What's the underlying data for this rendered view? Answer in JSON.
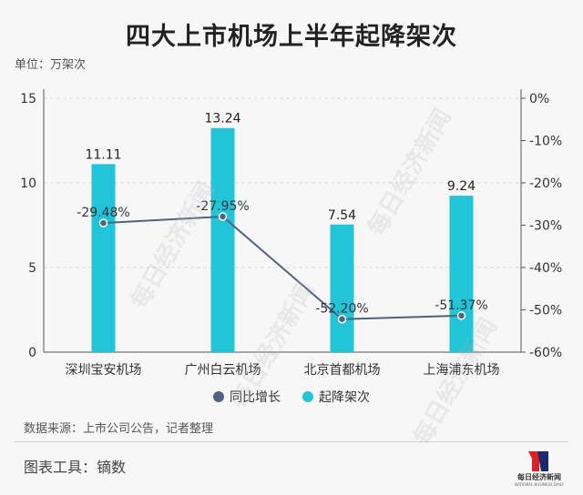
{
  "header": {
    "title": "四大上市机场上半年起降架次",
    "unit": "单位：万架次"
  },
  "footer": {
    "source": "数据来源：上市公司公告，记者整理",
    "tool": "图表工具：镝数",
    "logo_text": "每日经济新闻",
    "logo_subtext": "NATIONAL BUSINESS DAILY"
  },
  "watermark_text": "每日经济新闻",
  "colors": {
    "bar": "#22c4d8",
    "line": "#4f6381",
    "axis": "#333333",
    "logo_red": "#e02020",
    "logo_blue": "#1a2a6c"
  },
  "chart_data": {
    "type": "bar",
    "categories": [
      "深圳宝安机场",
      "广州白云机场",
      "北京首都机场",
      "上海浦东机场"
    ],
    "series": [
      {
        "name": "起降架次",
        "type": "bar",
        "axis": "left",
        "values": [
          11.11,
          13.24,
          7.54,
          9.24
        ],
        "labels": [
          "11.11",
          "13.24",
          "7.54",
          "9.24"
        ]
      },
      {
        "name": "同比增长",
        "type": "line",
        "axis": "right",
        "values": [
          -29.48,
          -27.95,
          -52.2,
          -51.37
        ],
        "labels": [
          "-29.48%",
          "-27.95%",
          "-52.20%",
          "-51.37%"
        ]
      }
    ],
    "left_axis": {
      "ylim": [
        0,
        15
      ],
      "ticks": [
        "0",
        "5",
        "10",
        "15"
      ]
    },
    "right_axis": {
      "ylim": [
        -60,
        0
      ],
      "ticks": [
        "0%",
        "-10%",
        "-20%",
        "-30%",
        "-40%",
        "-50%",
        "-60%"
      ]
    },
    "legend": {
      "position": "bottom",
      "items": [
        "同比增长",
        "起降架次"
      ]
    },
    "grid": true
  }
}
